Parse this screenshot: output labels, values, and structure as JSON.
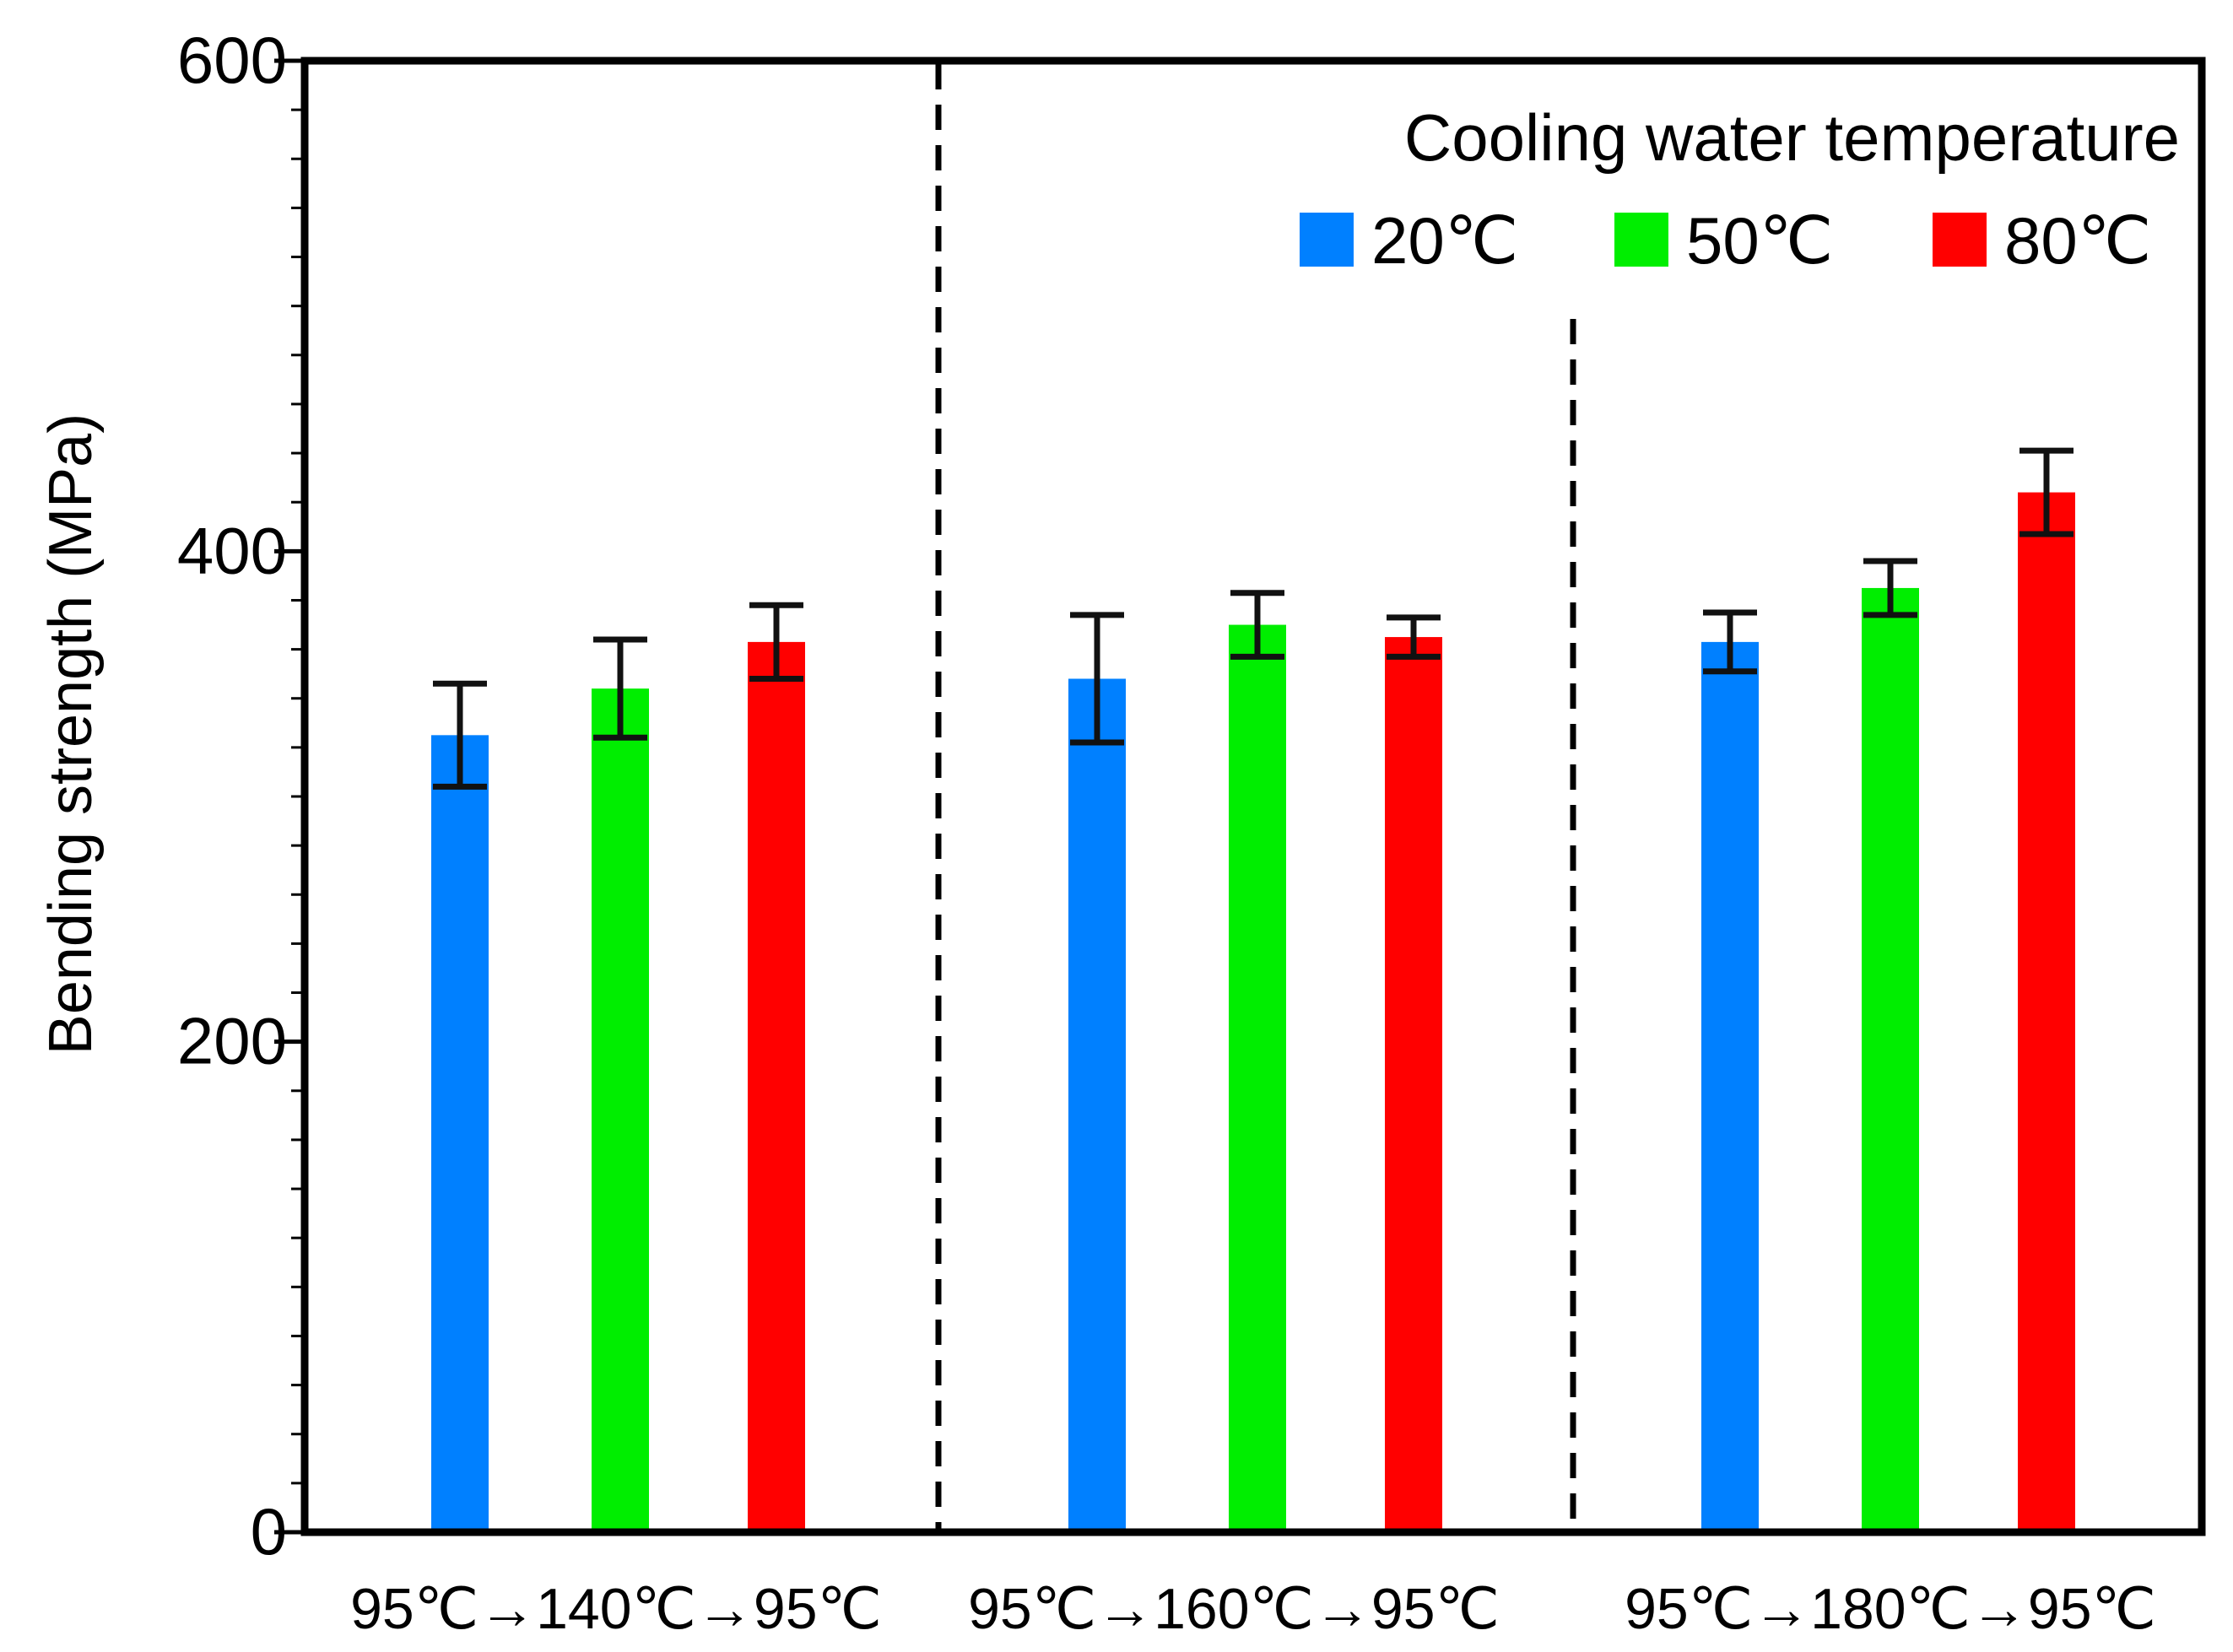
{
  "chart_data": {
    "type": "bar",
    "ylabel": "Bending strength (MPa)",
    "xlabel": "",
    "ylim": [
      0,
      600
    ],
    "y_major_ticks": [
      0,
      200,
      400,
      600
    ],
    "y_minor_tick_step": 20,
    "categories": [
      "95℃→140℃→95℃",
      "95℃→160℃→95℃",
      "95℃→180℃→95℃"
    ],
    "legend": {
      "title": "Cooling water temperature",
      "placement": "top-right"
    },
    "series": [
      {
        "name": "20℃",
        "color": "#0080ff",
        "values": [
          325,
          348,
          363
        ],
        "errors": [
          21,
          26,
          12
        ]
      },
      {
        "name": "50℃",
        "color": "#00ee00",
        "values": [
          344,
          370,
          385
        ],
        "errors": [
          20,
          13,
          11
        ]
      },
      {
        "name": "80℃",
        "color": "#ff0000",
        "values": [
          363,
          365,
          424
        ],
        "errors": [
          15,
          8,
          17
        ]
      }
    ],
    "group_separators": "dashed vertical lines between groups",
    "grid": false
  }
}
